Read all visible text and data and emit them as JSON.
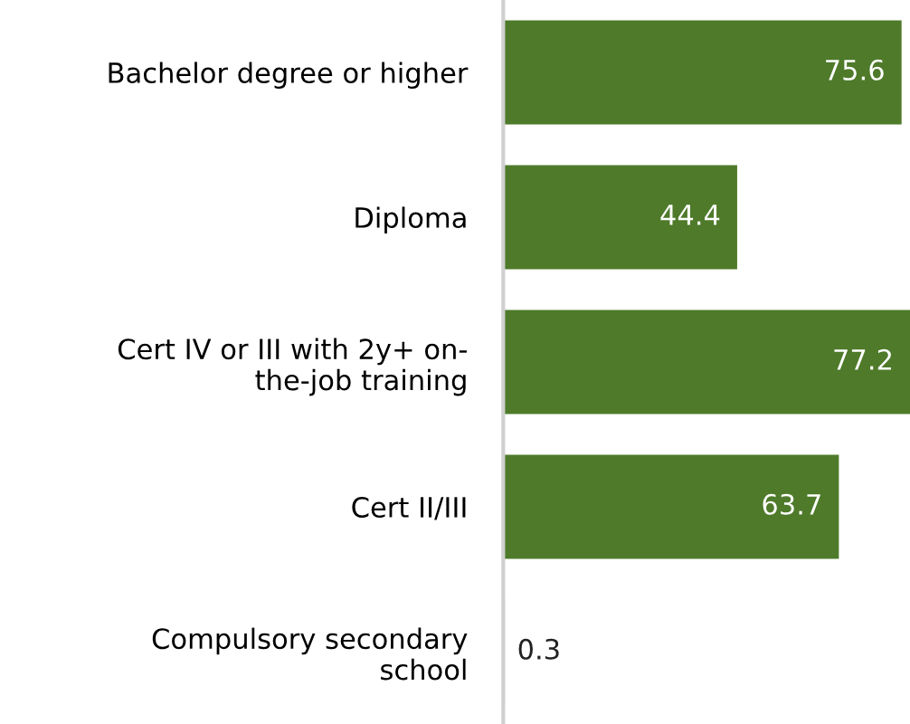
{
  "chart_data": {
    "type": "bar",
    "orientation": "horizontal",
    "data_labels": true,
    "categories": [
      "Bachelor degree or higher",
      "Diploma",
      "Cert IV or III with 2y+ on-\nthe-job training",
      "Cert II/III",
      "Compulsory secondary\nschool"
    ],
    "values": [
      75.6,
      44.4,
      77.2,
      63.7,
      0.3
    ],
    "color": "#4e7a2a",
    "grid": false,
    "legend": false,
    "tick_labels": "y"
  }
}
